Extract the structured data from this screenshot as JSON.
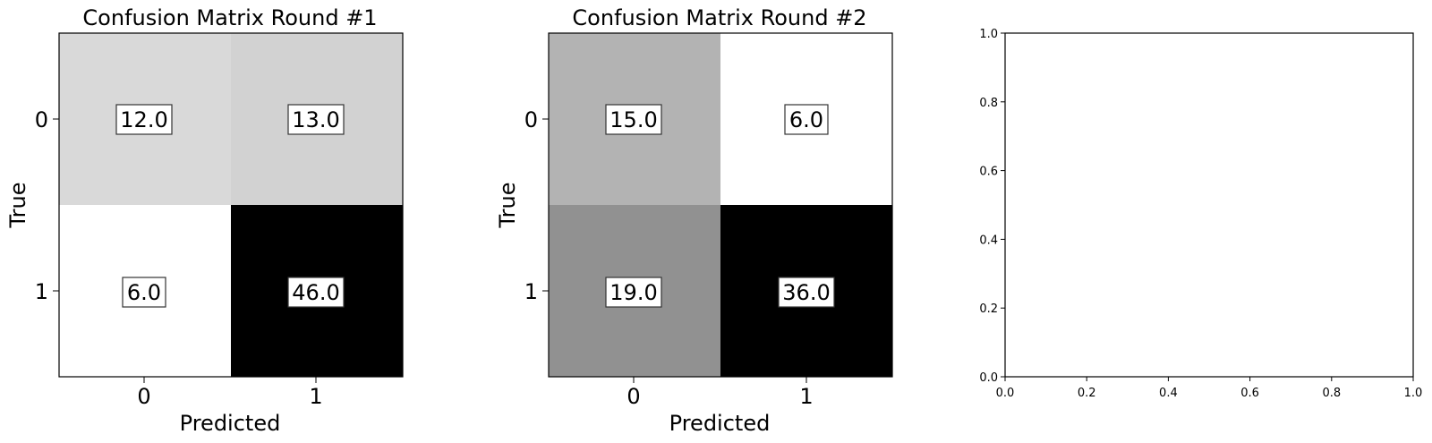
{
  "chart_data": [
    {
      "type": "heatmap",
      "title": "Confusion Matrix Round #1",
      "xlabel": "Predicted",
      "ylabel": "True",
      "x_tick_labels": [
        "0",
        "1"
      ],
      "y_tick_labels": [
        "0",
        "1"
      ],
      "colormap": "greys",
      "values": [
        [
          12.0,
          13.0
        ],
        [
          6.0,
          46.0
        ]
      ],
      "value_labels": [
        [
          "12.0",
          "13.0"
        ],
        [
          "6.0",
          "46.0"
        ]
      ],
      "grid": false
    },
    {
      "type": "heatmap",
      "title": "Confusion Matrix Round #2",
      "xlabel": "Predicted",
      "ylabel": "True",
      "x_tick_labels": [
        "0",
        "1"
      ],
      "y_tick_labels": [
        "0",
        "1"
      ],
      "colormap": "greys",
      "values": [
        [
          15.0,
          6.0
        ],
        [
          19.0,
          36.0
        ]
      ],
      "value_labels": [
        [
          "15.0",
          "6.0"
        ],
        [
          "19.0",
          "36.0"
        ]
      ],
      "grid": false
    },
    {
      "type": "line",
      "title": "",
      "xlabel": "",
      "ylabel": "",
      "xlim": [
        0.0,
        1.0
      ],
      "ylim": [
        0.0,
        1.0
      ],
      "x_tick_labels": [
        "0.0",
        "0.2",
        "0.4",
        "0.6",
        "0.8",
        "1.0"
      ],
      "y_tick_labels": [
        "0.0",
        "0.2",
        "0.4",
        "0.6",
        "0.8",
        "1.0"
      ],
      "series": [],
      "grid": false
    }
  ]
}
